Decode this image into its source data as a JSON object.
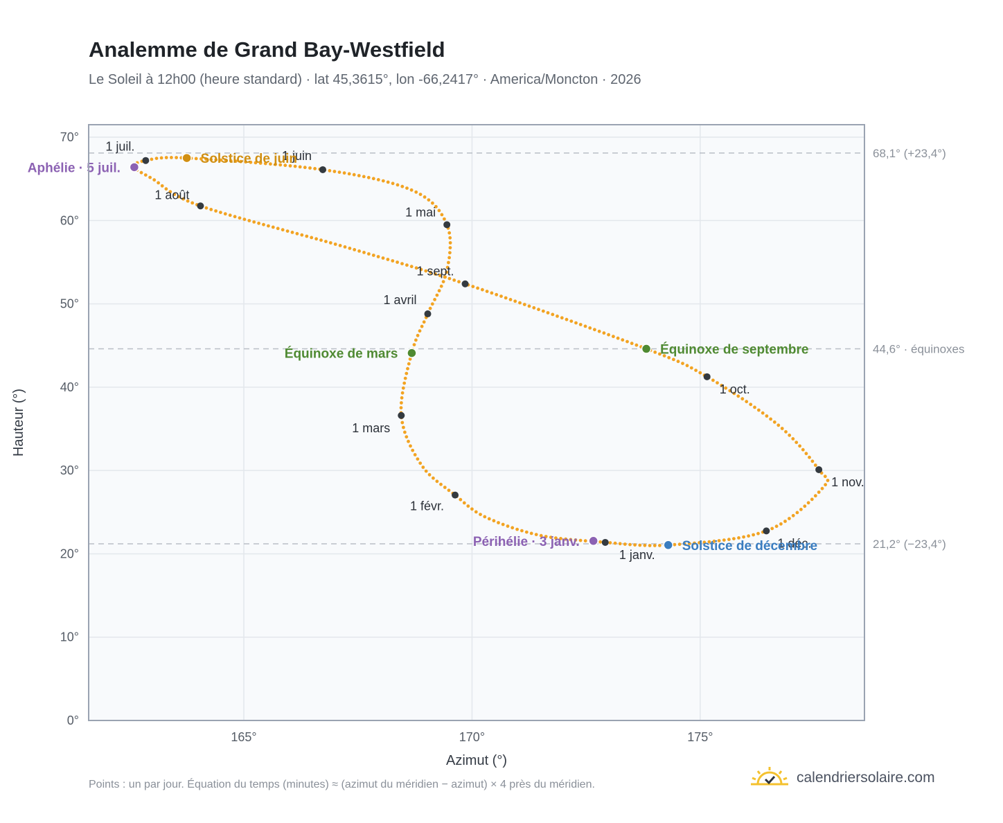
{
  "header": {
    "title": "Analemme de Grand Bay-Westfield",
    "subtitle": "Le Soleil à 12h00 (heure standard) · lat 45,3615°, lon -66,2417° · America/Moncton · 2026"
  },
  "footer": {
    "note": "Points : un par jour. Équation du temps (minutes) ≈ (azimut du méridien − azimut) × 4 près du méridien.",
    "brand": "calendriersolaire.com"
  },
  "colors": {
    "curve": "#f2a322",
    "month_marker": "#343a40",
    "equinox": "#4f8a32",
    "june_solstice": "#d18f12",
    "december_solstice": "#3a7dc0",
    "apsis": "#8c62b3",
    "reference_line": "#b9bec6",
    "plot_background": "#f8fafc",
    "plot_border": "#9aa3b2",
    "grid": "#e3e7ec"
  },
  "chart_data": {
    "type": "scatter",
    "xlabel": "Azimut (°)",
    "ylabel": "Hauteur (°)",
    "xlim": [
      161.6,
      178.6
    ],
    "ylim": [
      0,
      71.5
    ],
    "xticks": [
      165,
      170,
      175
    ],
    "yticks": [
      0,
      10,
      20,
      30,
      40,
      50,
      60,
      70
    ],
    "grid": true,
    "tick_suffix": "°",
    "curve_keypoints": [
      {
        "x": 172.92,
        "y": 21.37
      },
      {
        "x": 171.5,
        "y": 22.2
      },
      {
        "x": 170.3,
        "y": 24.4
      },
      {
        "x": 169.63,
        "y": 27.05
      },
      {
        "x": 168.9,
        "y": 30.6
      },
      {
        "x": 168.45,
        "y": 36.6
      },
      {
        "x": 168.68,
        "y": 44.1
      },
      {
        "x": 169.03,
        "y": 48.8
      },
      {
        "x": 169.45,
        "y": 54.0
      },
      {
        "x": 169.45,
        "y": 59.5
      },
      {
        "x": 168.7,
        "y": 63.6
      },
      {
        "x": 166.73,
        "y": 66.1
      },
      {
        "x": 163.75,
        "y": 67.5
      },
      {
        "x": 162.85,
        "y": 67.2
      },
      {
        "x": 162.6,
        "y": 66.4
      },
      {
        "x": 163.0,
        "y": 65.0
      },
      {
        "x": 164.05,
        "y": 61.75
      },
      {
        "x": 167.3,
        "y": 56.7
      },
      {
        "x": 169.85,
        "y": 52.4
      },
      {
        "x": 173.82,
        "y": 44.6
      },
      {
        "x": 175.15,
        "y": 41.25
      },
      {
        "x": 176.7,
        "y": 35.5
      },
      {
        "x": 177.6,
        "y": 30.1
      },
      {
        "x": 177.7,
        "y": 28.0
      },
      {
        "x": 176.45,
        "y": 22.75
      },
      {
        "x": 174.3,
        "y": 21.05
      },
      {
        "x": 172.92,
        "y": 21.37
      }
    ],
    "month_markers": [
      {
        "label": "1 janv.",
        "x": 172.92,
        "y": 21.37
      },
      {
        "label": "1 févr.",
        "x": 169.63,
        "y": 27.05
      },
      {
        "label": "1 mars",
        "x": 168.45,
        "y": 36.6
      },
      {
        "label": "1 avril",
        "x": 169.03,
        "y": 48.8
      },
      {
        "label": "1 mai",
        "x": 169.45,
        "y": 59.5
      },
      {
        "label": "1 juin",
        "x": 166.73,
        "y": 66.1
      },
      {
        "label": "1 juil.",
        "x": 162.85,
        "y": 67.2
      },
      {
        "label": "1 août",
        "x": 164.05,
        "y": 61.75
      },
      {
        "label": "1 sept.",
        "x": 169.85,
        "y": 52.4
      },
      {
        "label": "1 oct.",
        "x": 175.15,
        "y": 41.25
      },
      {
        "label": "1 nov.",
        "x": 177.6,
        "y": 30.1
      },
      {
        "label": "1 déc.",
        "x": 176.45,
        "y": 22.75
      }
    ],
    "events": [
      {
        "label": "Équinoxe de mars",
        "x": 168.68,
        "y": 44.1,
        "kind": "equinox"
      },
      {
        "label": "Solstice de juin",
        "x": 163.75,
        "y": 67.5,
        "kind": "june_solstice"
      },
      {
        "label": "Aphélie · 5 juil.",
        "x": 162.6,
        "y": 66.4,
        "kind": "apsis"
      },
      {
        "label": "Équinoxe de septembre",
        "x": 173.82,
        "y": 44.6,
        "kind": "equinox"
      },
      {
        "label": "Solstice de décembre",
        "x": 174.3,
        "y": 21.05,
        "kind": "december_solstice"
      },
      {
        "label": "Périhélie · 3 janv.",
        "x": 172.66,
        "y": 21.55,
        "kind": "apsis"
      }
    ],
    "reference_lines": [
      {
        "y": 68.1,
        "label": "68,1° (+23,4°)"
      },
      {
        "y": 44.6,
        "label": "44,6° · équinoxes"
      },
      {
        "y": 21.2,
        "label": "21,2° (−23,4°)"
      }
    ]
  }
}
